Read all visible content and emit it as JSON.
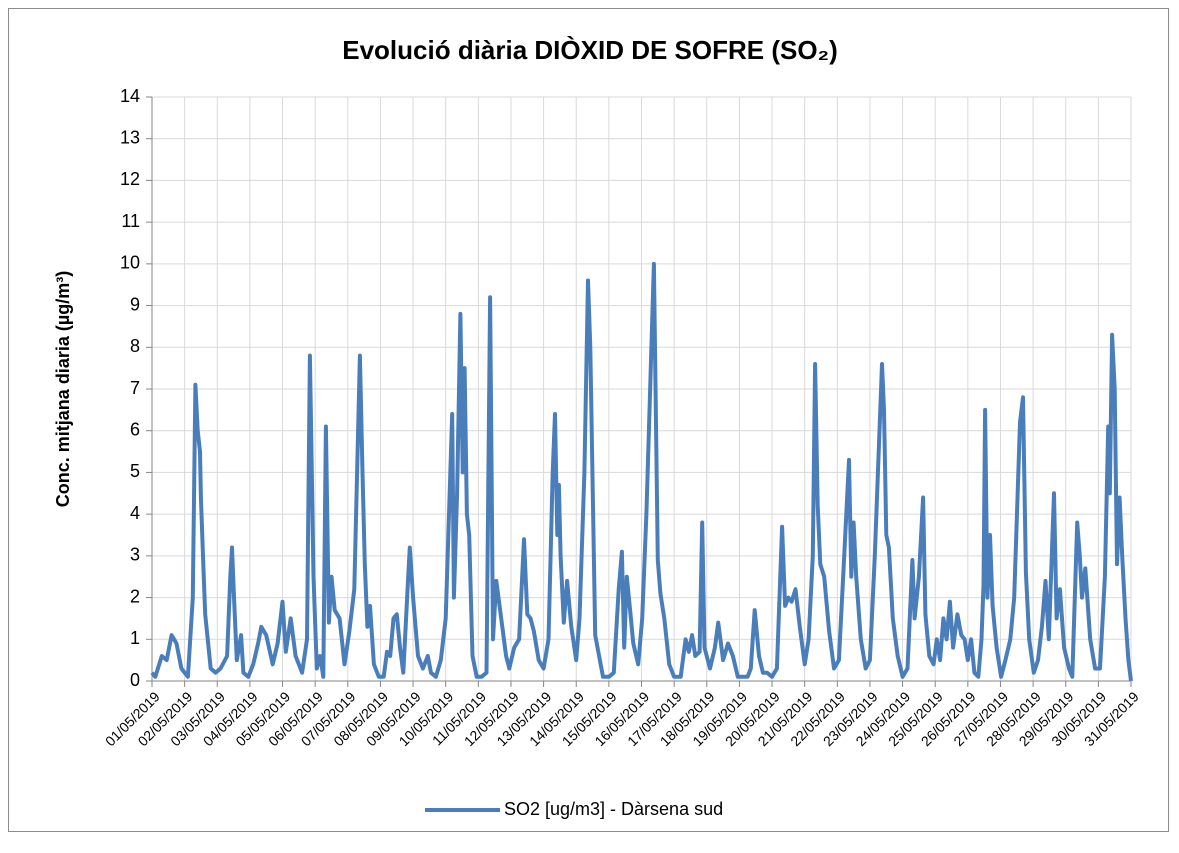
{
  "chart_data": {
    "type": "line",
    "title": "Evolució diària DIÒXID DE SOFRE (SO₂)",
    "y_label": "Conc. mitjana diaria (µg/m³)",
    "xlim": [
      0,
      30
    ],
    "ylim": [
      0,
      14
    ],
    "yticks": [
      0,
      1,
      2,
      3,
      4,
      5,
      6,
      7,
      8,
      9,
      10,
      11,
      12,
      13,
      14
    ],
    "xticks": [
      {
        "value": 0,
        "label": "01/05/2019"
      },
      {
        "value": 1,
        "label": "02/05/2019"
      },
      {
        "value": 2,
        "label": "03/05/2019"
      },
      {
        "value": 3,
        "label": "04/05/2019"
      },
      {
        "value": 4,
        "label": "05/05/2019"
      },
      {
        "value": 5,
        "label": "06/05/2019"
      },
      {
        "value": 6,
        "label": "07/05/2019"
      },
      {
        "value": 7,
        "label": "08/05/2019"
      },
      {
        "value": 8,
        "label": "09/05/2019"
      },
      {
        "value": 9,
        "label": "10/05/2019"
      },
      {
        "value": 10,
        "label": "11/05/2019"
      },
      {
        "value": 11,
        "label": "12/05/2019"
      },
      {
        "value": 12,
        "label": "13/05/2019"
      },
      {
        "value": 13,
        "label": "14/05/2019"
      },
      {
        "value": 14,
        "label": "15/05/2019"
      },
      {
        "value": 15,
        "label": "16/05/2019"
      },
      {
        "value": 16,
        "label": "17/05/2019"
      },
      {
        "value": 17,
        "label": "18/05/2019"
      },
      {
        "value": 18,
        "label": "19/05/2019"
      },
      {
        "value": 19,
        "label": "20/05/2019"
      },
      {
        "value": 20,
        "label": "21/05/2019"
      },
      {
        "value": 21,
        "label": "22/05/2019"
      },
      {
        "value": 22,
        "label": "23/05/2019"
      },
      {
        "value": 23,
        "label": "24/05/2019"
      },
      {
        "value": 24,
        "label": "25/05/2019"
      },
      {
        "value": 25,
        "label": "26/05/2019"
      },
      {
        "value": 26,
        "label": "27/05/2019"
      },
      {
        "value": 27,
        "label": "28/05/2019"
      },
      {
        "value": 28,
        "label": "29/05/2019"
      },
      {
        "value": 29,
        "label": "30/05/2019"
      },
      {
        "value": 30,
        "label": "31/05/2019"
      }
    ],
    "grid": true,
    "legend": "bottom",
    "series": [
      {
        "name": "SO2 [ug/m3] - Dàrsena sud",
        "color": "#4a7ebb",
        "x": [
          0,
          0.1,
          0.3,
          0.45,
          0.6,
          0.75,
          0.9,
          1.1,
          1.25,
          1.33,
          1.4,
          1.47,
          1.5,
          1.58,
          1.63,
          1.8,
          1.95,
          2.1,
          2.3,
          2.4,
          2.45,
          2.52,
          2.6,
          2.73,
          2.8,
          2.95,
          3.1,
          3.25,
          3.35,
          3.5,
          3.7,
          3.85,
          4.0,
          4.1,
          4.25,
          4.4,
          4.6,
          4.75,
          4.84,
          4.95,
          5.05,
          5.15,
          5.25,
          5.33,
          5.42,
          5.5,
          5.6,
          5.75,
          5.9,
          6.05,
          6.2,
          6.37,
          6.45,
          6.52,
          6.6,
          6.68,
          6.8,
          6.95,
          7.1,
          7.2,
          7.3,
          7.4,
          7.5,
          7.6,
          7.7,
          7.8,
          7.85,
          7.9,
          8.0,
          8.15,
          8.3,
          8.45,
          8.55,
          8.7,
          8.85,
          9.0,
          9.1,
          9.2,
          9.25,
          9.35,
          9.45,
          9.52,
          9.58,
          9.65,
          9.72,
          9.82,
          9.95,
          10.1,
          10.25,
          10.36,
          10.45,
          10.55,
          10.7,
          10.85,
          10.95,
          11.1,
          11.25,
          11.4,
          11.5,
          11.6,
          11.7,
          11.85,
          12.0,
          12.15,
          12.28,
          12.35,
          12.42,
          12.47,
          12.52,
          12.62,
          12.72,
          12.85,
          13.0,
          13.1,
          13.25,
          13.36,
          13.43,
          13.5,
          13.58,
          13.7,
          13.82,
          14.0,
          14.15,
          14.3,
          14.4,
          14.47,
          14.55,
          14.65,
          14.75,
          14.9,
          15.02,
          15.15,
          15.38,
          15.5,
          15.58,
          15.7,
          15.85,
          16.0,
          16.2,
          16.35,
          16.45,
          16.55,
          16.65,
          16.78,
          16.86,
          16.93,
          17.1,
          17.25,
          17.35,
          17.5,
          17.65,
          17.8,
          17.95,
          18.1,
          18.25,
          18.35,
          18.47,
          18.6,
          18.72,
          18.85,
          19.0,
          19.15,
          19.31,
          19.4,
          19.5,
          19.6,
          19.72,
          19.85,
          20.0,
          20.12,
          20.25,
          20.32,
          20.4,
          20.48,
          20.6,
          20.75,
          20.9,
          21.05,
          21.2,
          21.36,
          21.43,
          21.5,
          21.58,
          21.72,
          21.87,
          22.0,
          22.15,
          22.37,
          22.43,
          22.5,
          22.58,
          22.7,
          22.85,
          23.0,
          23.15,
          23.3,
          23.37,
          23.5,
          23.63,
          23.7,
          23.82,
          23.95,
          24.05,
          24.15,
          24.25,
          24.35,
          24.45,
          24.55,
          24.68,
          24.8,
          24.9,
          25.0,
          25.1,
          25.2,
          25.32,
          25.42,
          25.48,
          25.53,
          25.6,
          25.68,
          25.76,
          25.88,
          26.02,
          26.15,
          26.3,
          26.42,
          26.6,
          26.69,
          26.78,
          26.88,
          27.02,
          27.15,
          27.27,
          27.38,
          27.48,
          27.64,
          27.72,
          27.82,
          27.95,
          28.1,
          28.2,
          28.35,
          28.43,
          28.5,
          28.6,
          28.75,
          28.9,
          29.05,
          29.2,
          29.3,
          29.35,
          29.42,
          29.5,
          29.57,
          29.65,
          29.73,
          29.83,
          29.92,
          30.0
        ],
        "values": [
          0.2,
          0.1,
          0.6,
          0.5,
          1.1,
          0.9,
          0.3,
          0.1,
          2.0,
          7.1,
          6.0,
          5.5,
          4.4,
          2.6,
          1.6,
          0.3,
          0.2,
          0.3,
          0.6,
          2.5,
          3.2,
          1.9,
          0.5,
          1.1,
          0.2,
          0.1,
          0.4,
          0.9,
          1.3,
          1.1,
          0.4,
          0.9,
          1.9,
          0.7,
          1.5,
          0.6,
          0.2,
          1.0,
          7.8,
          2.5,
          0.3,
          0.6,
          0.1,
          6.1,
          1.4,
          2.5,
          1.7,
          1.5,
          0.4,
          1.2,
          2.2,
          7.8,
          5.0,
          2.8,
          1.3,
          1.8,
          0.4,
          0.1,
          0.1,
          0.7,
          0.6,
          1.5,
          1.6,
          0.8,
          0.2,
          1.7,
          2.5,
          3.2,
          2.0,
          0.6,
          0.3,
          0.6,
          0.2,
          0.1,
          0.5,
          1.5,
          4.0,
          6.4,
          2.0,
          4.5,
          8.8,
          5.0,
          7.5,
          4.0,
          3.5,
          0.6,
          0.1,
          0.1,
          0.2,
          9.2,
          1.0,
          2.4,
          1.5,
          0.6,
          0.3,
          0.8,
          1.0,
          3.4,
          1.6,
          1.5,
          1.2,
          0.5,
          0.3,
          1.0,
          5.0,
          6.4,
          3.5,
          4.7,
          3.0,
          1.4,
          2.4,
          1.3,
          0.5,
          1.5,
          5.0,
          9.6,
          8.0,
          4.9,
          1.1,
          0.6,
          0.1,
          0.1,
          0.2,
          2.2,
          3.1,
          0.8,
          2.5,
          1.7,
          0.9,
          0.4,
          1.5,
          4.0,
          10.0,
          2.9,
          2.1,
          1.5,
          0.4,
          0.1,
          0.1,
          1.0,
          0.7,
          1.1,
          0.6,
          0.7,
          3.8,
          0.8,
          0.3,
          0.8,
          1.4,
          0.5,
          0.9,
          0.6,
          0.1,
          0.1,
          0.1,
          0.3,
          1.7,
          0.6,
          0.2,
          0.2,
          0.1,
          0.3,
          3.7,
          1.8,
          2.0,
          1.9,
          2.2,
          1.3,
          0.4,
          1.0,
          3.0,
          7.6,
          4.2,
          2.8,
          2.5,
          1.2,
          0.3,
          0.5,
          2.8,
          5.3,
          2.5,
          3.8,
          2.5,
          1.0,
          0.3,
          0.5,
          3.0,
          7.6,
          6.5,
          3.5,
          3.2,
          1.5,
          0.6,
          0.1,
          0.3,
          2.9,
          1.5,
          2.5,
          4.4,
          1.6,
          0.6,
          0.4,
          1.0,
          0.5,
          1.5,
          1.0,
          1.9,
          0.8,
          1.6,
          1.1,
          1.0,
          0.5,
          1.0,
          0.2,
          0.1,
          1.0,
          2.3,
          6.5,
          2.0,
          3.5,
          1.8,
          0.8,
          0.1,
          0.5,
          1.0,
          2.0,
          6.2,
          6.8,
          2.6,
          1.0,
          0.2,
          0.5,
          1.3,
          2.4,
          1.0,
          4.5,
          1.5,
          2.2,
          0.8,
          0.3,
          0.1,
          3.8,
          3.0,
          2.0,
          2.7,
          1.0,
          0.3,
          0.3,
          2.5,
          6.1,
          4.5,
          8.3,
          7.0,
          2.8,
          4.4,
          3.0,
          1.5,
          0.5,
          0
        ]
      }
    ]
  }
}
